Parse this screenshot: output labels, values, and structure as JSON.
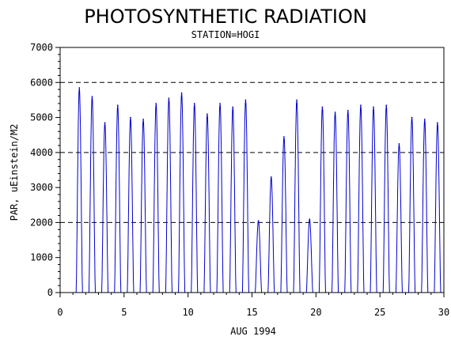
{
  "chart_data": {
    "type": "line",
    "title": "PHOTOSYNTHETIC RADIATION",
    "subtitle": "STATION=HOGI",
    "xlabel": "AUG 1994",
    "ylabel": "PAR, uEinstein/M2",
    "xlim": [
      0,
      30
    ],
    "ylim": [
      0,
      7000
    ],
    "xticks": [
      0,
      5,
      10,
      15,
      20,
      25,
      30
    ],
    "yticks": [
      0,
      1000,
      2000,
      3000,
      4000,
      5000,
      6000,
      7000
    ],
    "reference_lines": [
      2000,
      4000,
      6000
    ],
    "line_color": "#0000cc",
    "grid": false,
    "daily_peaks": [
      {
        "day": 1,
        "peak": 5850
      },
      {
        "day": 2,
        "peak": 5600
      },
      {
        "day": 3,
        "peak": 4850
      },
      {
        "day": 4,
        "peak": 5350
      },
      {
        "day": 5,
        "peak": 5000
      },
      {
        "day": 6,
        "peak": 4950
      },
      {
        "day": 7,
        "peak": 5400
      },
      {
        "day": 8,
        "peak": 5550
      },
      {
        "day": 9,
        "peak": 5700
      },
      {
        "day": 10,
        "peak": 5400
      },
      {
        "day": 11,
        "peak": 5100
      },
      {
        "day": 12,
        "peak": 5400
      },
      {
        "day": 13,
        "peak": 5300
      },
      {
        "day": 14,
        "peak": 5500
      },
      {
        "day": 15,
        "peak": 2050
      },
      {
        "day": 16,
        "peak": 3300
      },
      {
        "day": 17,
        "peak": 4450
      },
      {
        "day": 18,
        "peak": 5500
      },
      {
        "day": 19,
        "peak": 2100
      },
      {
        "day": 20,
        "peak": 5300
      },
      {
        "day": 21,
        "peak": 5150
      },
      {
        "day": 22,
        "peak": 5200
      },
      {
        "day": 23,
        "peak": 5350
      },
      {
        "day": 24,
        "peak": 5300
      },
      {
        "day": 25,
        "peak": 5350
      },
      {
        "day": 26,
        "peak": 4250
      },
      {
        "day": 27,
        "peak": 5000
      },
      {
        "day": 28,
        "peak": 4950
      },
      {
        "day": 29,
        "peak": 4850
      }
    ]
  }
}
